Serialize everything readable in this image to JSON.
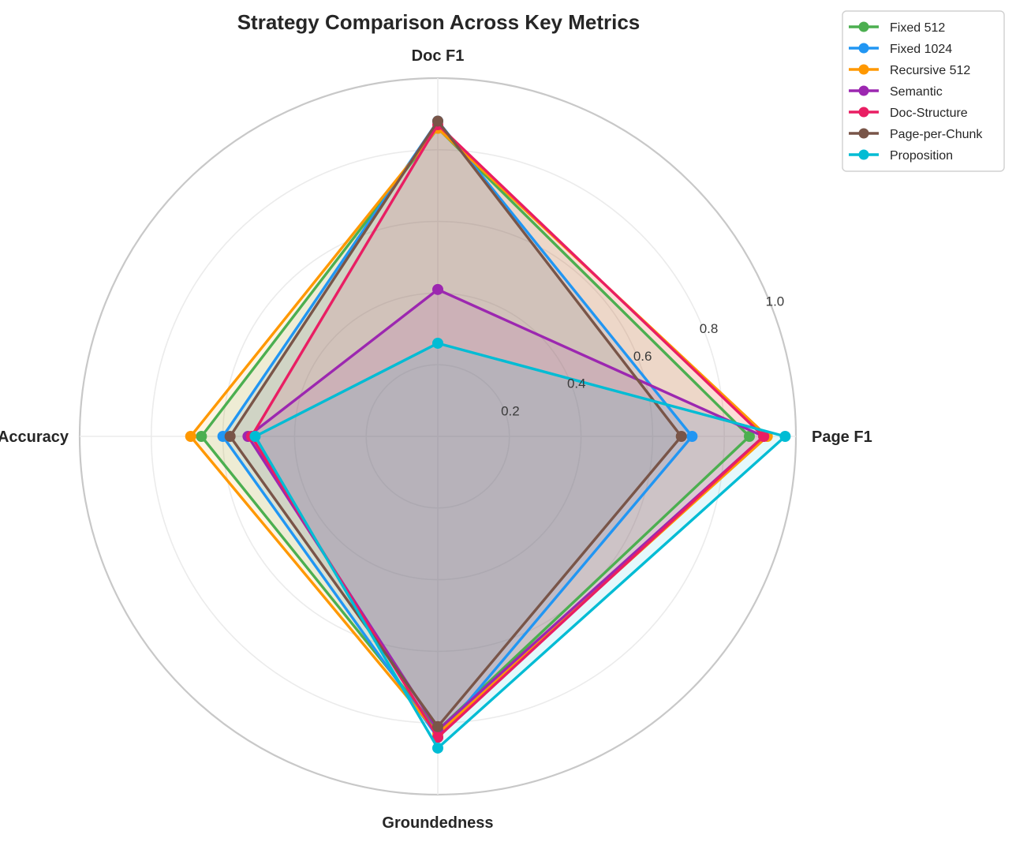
{
  "chart_data": {
    "type": "radar",
    "title": "Strategy Comparison Across Key Metrics",
    "axes": [
      "Doc F1",
      "Page F1",
      "Groundedness",
      "Accuracy"
    ],
    "rlim": [
      0,
      1.0
    ],
    "rticks": [
      0.2,
      0.4,
      0.6,
      0.8,
      1.0
    ],
    "rtick_labels": [
      "0.2",
      "0.4",
      "0.6",
      "0.8",
      "1.0"
    ],
    "grid": true,
    "legend_position": "top-right",
    "series": [
      {
        "name": "Fixed 512",
        "color": "#4CAF50",
        "values": [
          0.86,
          0.87,
          0.82,
          0.66
        ]
      },
      {
        "name": "Fixed 1024",
        "color": "#2196F3",
        "values": [
          0.88,
          0.71,
          0.84,
          0.6
        ]
      },
      {
        "name": "Recursive 512",
        "color": "#FF9800",
        "values": [
          0.86,
          0.92,
          0.83,
          0.69
        ]
      },
      {
        "name": "Semantic",
        "color": "#9C27B0",
        "values": [
          0.41,
          0.91,
          0.82,
          0.53
        ]
      },
      {
        "name": "Doc-Structure",
        "color": "#E91E63",
        "values": [
          0.87,
          0.91,
          0.84,
          0.52
        ]
      },
      {
        "name": "Page-per-Chunk",
        "color": "#795548",
        "values": [
          0.88,
          0.68,
          0.81,
          0.58
        ]
      },
      {
        "name": "Proposition",
        "color": "#00BCD4",
        "values": [
          0.26,
          0.97,
          0.87,
          0.51
        ]
      }
    ]
  }
}
